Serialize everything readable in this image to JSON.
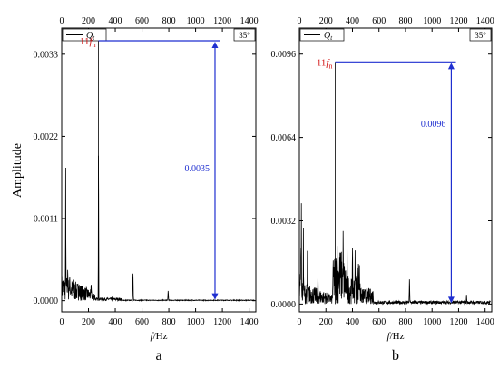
{
  "y_axis_title": "Amplitude",
  "chart_data": [
    {
      "type": "line",
      "panel_label": "a",
      "xlabel": "f/Hz",
      "xlim": [
        0,
        1450
      ],
      "ylim": [
        -0.00015,
        0.00365
      ],
      "x_ticks": [
        0,
        200,
        400,
        600,
        800,
        1000,
        1200,
        1400
      ],
      "y_ticks": [
        0.0,
        0.0011,
        0.0022,
        0.0033
      ],
      "y_tick_labels": [
        "0.0000",
        "0.0011",
        "0.0022",
        "0.0033"
      ],
      "legend": "Q",
      "legend_sub": "t",
      "angle_label": "35°",
      "harmonic_label": "11",
      "harmonic_sub": "n",
      "annotation": {
        "x": 275,
        "value": "0.0035",
        "y_top": 0.00348,
        "x_right": 1185,
        "arrow_x": 1145,
        "label_y": 0.00173
      },
      "peaks": [
        [
          30,
          0.00205
        ],
        [
          45,
          0.00045
        ],
        [
          60,
          0.00035
        ],
        [
          90,
          0.0003
        ],
        [
          130,
          0.00025
        ],
        [
          220,
          0.00028
        ],
        [
          275,
          0.0028
        ],
        [
          380,
          8e-05
        ],
        [
          532,
          0.00048
        ],
        [
          795,
          0.00014
        ]
      ],
      "series": [
        {
          "name": "",
          "color": "#000000"
        }
      ]
    },
    {
      "type": "line",
      "panel_label": "b",
      "xlabel": "f/Hz",
      "xlim": [
        0,
        1450
      ],
      "ylim": [
        -0.0003,
        0.0106
      ],
      "x_ticks": [
        0,
        200,
        400,
        600,
        800,
        1000,
        1200,
        1400
      ],
      "y_ticks": [
        0.0,
        0.0032,
        0.0064,
        0.0096
      ],
      "y_tick_labels": [
        "0.0000",
        "0.0032",
        "0.0064",
        "0.0096"
      ],
      "legend": "Q",
      "legend_sub": "t",
      "angle_label": "35°",
      "harmonic_label": "11",
      "harmonic_sub": "n",
      "annotation": {
        "x": 270,
        "value": "0.0096",
        "y_top": 0.0093,
        "x_right": 1180,
        "arrow_x": 1145,
        "label_y": 0.0068
      },
      "peaks": [
        [
          15,
          0.0039
        ],
        [
          30,
          0.003
        ],
        [
          60,
          0.0022
        ],
        [
          140,
          0.0012
        ],
        [
          290,
          0.0032
        ],
        [
          330,
          0.0029
        ],
        [
          360,
          0.0022
        ],
        [
          400,
          0.0028
        ],
        [
          420,
          0.0022
        ],
        [
          830,
          0.0011
        ],
        [
          1260,
          0.0004
        ]
      ],
      "series": [
        {
          "name": "",
          "color": "#000000"
        }
      ]
    }
  ]
}
